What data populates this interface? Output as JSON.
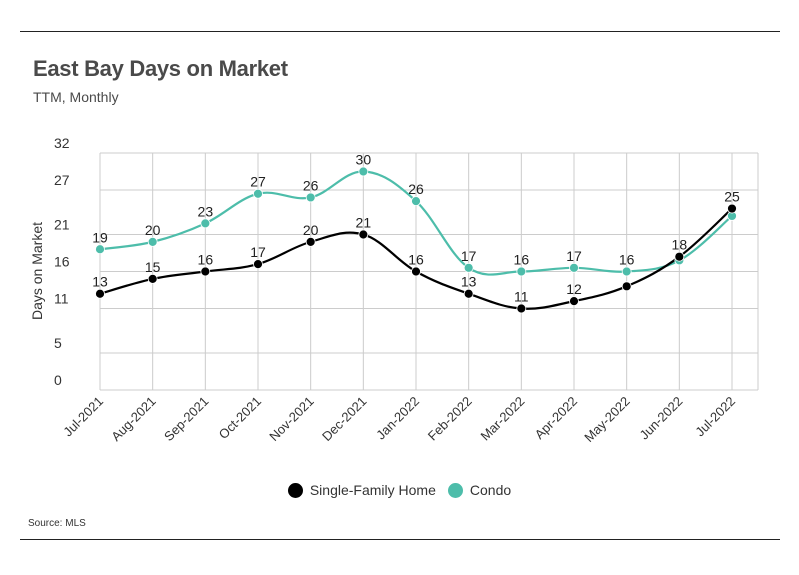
{
  "title": "East Bay Days on Market",
  "subtitle": "TTM, Monthly",
  "source": "Source:  MLS",
  "chart_data": {
    "type": "line",
    "ylabel": "Days on Market",
    "xlabel": "",
    "ylim": [
      0,
      32
    ],
    "yticks": [
      0,
      5,
      11,
      16,
      21,
      27,
      32
    ],
    "grid": true,
    "legend_position": "bottom",
    "categories": [
      "Jul-2021",
      "Aug-2021",
      "Sep-2021",
      "Oct-2021",
      "Nov-2021",
      "Dec-2021",
      "Jan-2022",
      "Feb-2022",
      "Mar-2022",
      "Apr-2022",
      "May-2022",
      "Jun-2022",
      "Jul-2022"
    ],
    "series": [
      {
        "name": "Single-Family Home",
        "color": "#000000",
        "values": [
          13,
          15,
          16,
          17,
          20,
          21,
          16,
          13,
          11,
          12,
          14,
          18,
          24.5
        ],
        "labels": [
          "13",
          "15",
          "16",
          "17",
          "20",
          "21",
          "16",
          "13",
          "11",
          "12",
          "",
          "18",
          "25"
        ]
      },
      {
        "name": "Condo",
        "color": "#4dbdaa",
        "values": [
          19,
          20,
          22.5,
          26.5,
          26,
          29.5,
          25.5,
          16.5,
          16,
          16.5,
          16,
          17.5,
          23.5
        ],
        "labels": [
          "19",
          "20",
          "23",
          "27",
          "26",
          "30",
          "26",
          "17",
          "16",
          "17",
          "16",
          "",
          ""
        ]
      }
    ]
  }
}
